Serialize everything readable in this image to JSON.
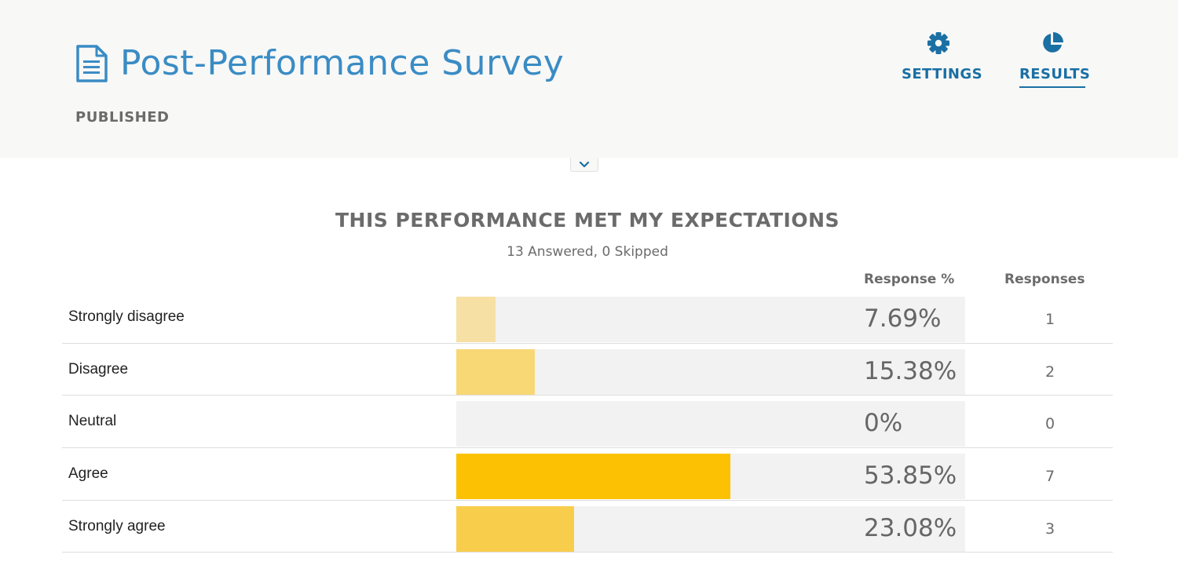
{
  "header": {
    "title": "Post-Performance Survey",
    "status": "PUBLISHED",
    "title_icon": "document-icon",
    "nav": {
      "settings": {
        "label": "SETTINGS",
        "icon": "gear-icon"
      },
      "results": {
        "label": "RESULTS",
        "icon": "pie-chart-icon",
        "active": true
      }
    }
  },
  "collapse_toggle": {
    "icon": "chevron-down-icon"
  },
  "question": {
    "title": "THIS PERFORMANCE MET MY EXPECTATIONS",
    "subtitle": "13 Answered, 0 Skipped",
    "col_pct": "Response %",
    "col_count": "Responses",
    "rows": [
      {
        "label": "Strongly disagree",
        "pct_text": "7.69%",
        "percent": 7.69,
        "count": "1",
        "color": "#f7e0a3"
      },
      {
        "label": "Disagree",
        "pct_text": "15.38%",
        "percent": 15.38,
        "count": "2",
        "color": "#f8d775"
      },
      {
        "label": "Neutral",
        "pct_text": "0%",
        "percent": 0,
        "count": "0",
        "color": "#f8d775"
      },
      {
        "label": "Agree",
        "pct_text": "53.85%",
        "percent": 53.85,
        "count": "7",
        "color": "#fcc102"
      },
      {
        "label": "Strongly agree",
        "pct_text": "23.08%",
        "percent": 23.08,
        "count": "3",
        "color": "#f9cd4c"
      }
    ]
  },
  "colors": {
    "title_blue": "#3a8cc4",
    "nav_blue": "#1a6fa3",
    "header_bg": "#f8f8f7",
    "track_bg": "#f2f2f2"
  }
}
